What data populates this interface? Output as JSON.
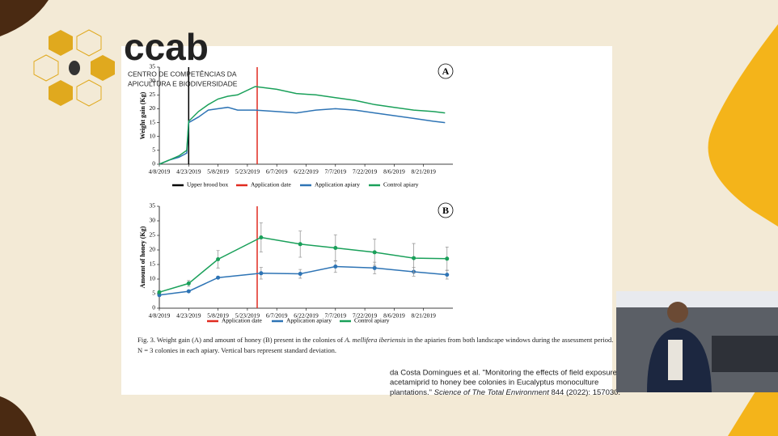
{
  "logo": {
    "name": "ccab",
    "line1": "CENTRO DE COMPETÊNCIAS DA",
    "line2": "APICULTURA E BIODIVERSIDADE"
  },
  "chart_data": [
    {
      "type": "line",
      "panel": "A",
      "ylabel": "Weight gain (Kg)",
      "xlim": [
        "2019-04-08",
        "2019-09-05"
      ],
      "xticks": [
        {
          "value": "2019-04-08",
          "label": "4/8/2019"
        },
        {
          "value": "2019-04-23",
          "label": "4/23/2019"
        },
        {
          "value": "2019-05-08",
          "label": "5/8/2019"
        },
        {
          "value": "2019-05-23",
          "label": "5/23/2019"
        },
        {
          "value": "2019-06-07",
          "label": "6/7/2019"
        },
        {
          "value": "2019-06-22",
          "label": "6/22/2019"
        },
        {
          "value": "2019-07-07",
          "label": "7/7/2019"
        },
        {
          "value": "2019-07-22",
          "label": "7/22/2019"
        },
        {
          "value": "2019-08-06",
          "label": "8/6/2019"
        },
        {
          "value": "2019-08-21",
          "label": "8/21/2019"
        }
      ],
      "ylim": [
        0,
        35
      ],
      "yticks": [
        0,
        5,
        10,
        15,
        20,
        25,
        30,
        35
      ],
      "grid": false,
      "points": false,
      "markers": [
        {
          "name": "Upper brood box",
          "color": "#000000",
          "x": "2019-04-23"
        },
        {
          "name": "Application date",
          "color": "#e02b20",
          "x": "2019-05-28"
        }
      ],
      "x": [
        "2019-04-08",
        "2019-04-13",
        "2019-04-18",
        "2019-04-22",
        "2019-04-23",
        "2019-04-28",
        "2019-05-03",
        "2019-05-08",
        "2019-05-13",
        "2019-05-18",
        "2019-05-27",
        "2019-06-07",
        "2019-06-17",
        "2019-06-27",
        "2019-07-07",
        "2019-07-17",
        "2019-07-27",
        "2019-08-06",
        "2019-08-16",
        "2019-08-26",
        "2019-09-01"
      ],
      "series": [
        {
          "name": "Application apiary",
          "color": "#2e74b5",
          "values": [
            0,
            1.5,
            2.5,
            4,
            15,
            17,
            19.5,
            20,
            20.5,
            19.5,
            19.5,
            19,
            18.5,
            19.5,
            20,
            19.5,
            18.5,
            17.5,
            16.5,
            15.5,
            15
          ]
        },
        {
          "name": "Control apiary",
          "color": "#1aa05a",
          "values": [
            0,
            1.5,
            3,
            5,
            15.5,
            19,
            21.5,
            23.5,
            24.5,
            25,
            28,
            27,
            25.5,
            25,
            24,
            23,
            21.5,
            20.5,
            19.5,
            19,
            18.5
          ]
        }
      ]
    },
    {
      "type": "line",
      "panel": "B",
      "ylabel": "Amount of honey (Kg)",
      "xlim": [
        "2019-04-08",
        "2019-09-05"
      ],
      "xticks": [
        {
          "value": "2019-04-08",
          "label": "4/8/2019"
        },
        {
          "value": "2019-04-23",
          "label": "4/23/2019"
        },
        {
          "value": "2019-05-08",
          "label": "5/8/2019"
        },
        {
          "value": "2019-05-23",
          "label": "5/23/2019"
        },
        {
          "value": "2019-06-07",
          "label": "6/7/2019"
        },
        {
          "value": "2019-06-22",
          "label": "6/22/2019"
        },
        {
          "value": "2019-07-07",
          "label": "7/7/2019"
        },
        {
          "value": "2019-07-22",
          "label": "7/22/2019"
        },
        {
          "value": "2019-08-06",
          "label": "8/6/2019"
        },
        {
          "value": "2019-08-21",
          "label": "8/21/2019"
        }
      ],
      "ylim": [
        0,
        35
      ],
      "yticks": [
        0,
        5,
        10,
        15,
        20,
        25,
        30,
        35
      ],
      "grid": false,
      "points": true,
      "markers": [
        {
          "name": "Application date",
          "color": "#e02b20",
          "x": "2019-05-28"
        }
      ],
      "x": [
        "2019-04-08",
        "2019-04-23",
        "2019-05-08",
        "2019-05-30",
        "2019-06-19",
        "2019-07-07",
        "2019-07-27",
        "2019-08-16",
        "2019-09-02"
      ],
      "series": [
        {
          "name": "Application apiary",
          "color": "#2e74b5",
          "values": [
            4.5,
            5.8,
            10.5,
            12,
            11.8,
            14.3,
            13.8,
            12.5,
            11.5
          ],
          "errors": [
            null,
            null,
            null,
            2,
            1.5,
            2,
            2,
            1.5,
            1.5
          ]
        },
        {
          "name": "Control apiary",
          "color": "#1aa05a",
          "values": [
            5.5,
            8.5,
            16.8,
            24.3,
            22,
            20.7,
            19.2,
            17.2,
            17
          ],
          "errors": [
            null,
            1,
            3,
            5,
            4.5,
            4.5,
            4.5,
            5,
            4
          ]
        }
      ]
    }
  ],
  "caption": {
    "line1a": "Fig. 3. Weight gain (A) and amount of honey (B) present in the colonies of ",
    "line1b": "A. mellifera iberiensis",
    "line1c": " in the apiaries from both landscape windows during the assessment period.",
    "line2": "N = 3 colonies in each apiary. Vertical bars represent standard deviation."
  },
  "citation": {
    "line1": "da Costa Domingues et al. \"Monitoring the effects of field exposure of",
    "line2": "acetamiprid to honey bee colonies in Eucalyptus monoculture",
    "line3a": "plantations.\" ",
    "line3b": "Science of The Total Environment",
    "line3c": " 844 (2022): 157030."
  }
}
